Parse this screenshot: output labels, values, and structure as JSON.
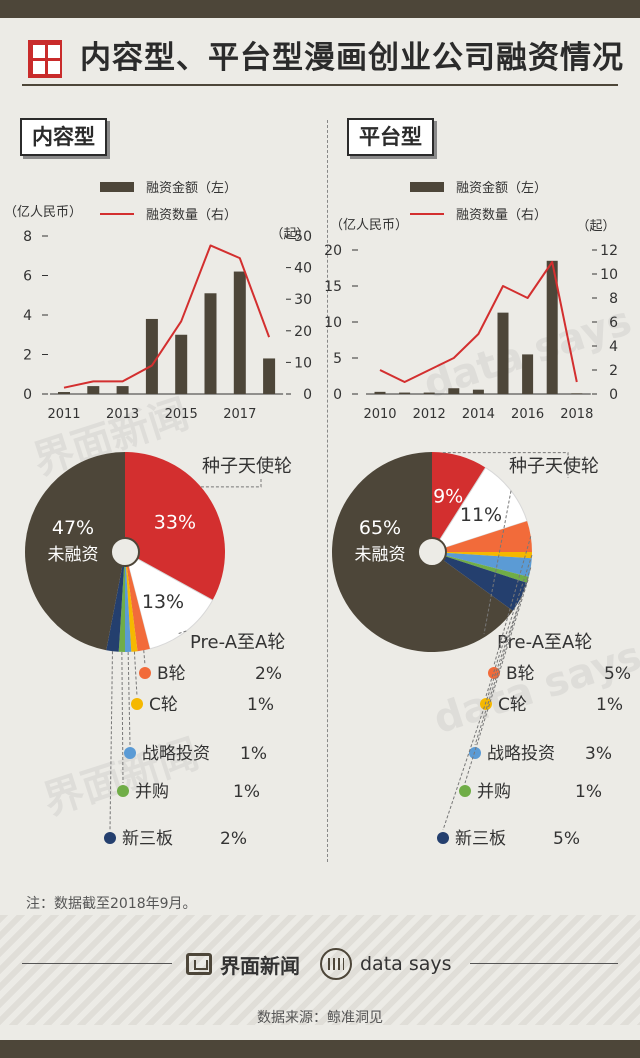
{
  "header": {
    "title": "内容型、平台型漫画创业公司融资情况"
  },
  "watermarks": [
    "界面新闻",
    "data says",
    "界面新闻",
    "data says"
  ],
  "legend": {
    "amount_label": "融资金额（左）",
    "count_label": "融资数量（右）"
  },
  "colors": {
    "bar": "#4d4639",
    "line": "#d32f2f",
    "seed": "#d32f2f",
    "unfunded": "#4d4639",
    "prea": "#ffffff",
    "b": "#f26b3a",
    "c": "#f5b800",
    "strategic": "#5b9bd5",
    "merger": "#70ad47",
    "neeq": "#243f6e"
  },
  "chart_data": [
    {
      "type": "bar",
      "section_label": "内容型",
      "y_left_label": "（亿人民币）",
      "y_right_label": "（起）",
      "y_left_ticks": [
        "8",
        "6",
        "4",
        "2",
        "0"
      ],
      "y_right_ticks": [
        "50",
        "40",
        "30",
        "20",
        "10",
        "0"
      ],
      "x_ticks": [
        "2011",
        "2013",
        "2015",
        "2017"
      ],
      "ylim_left": [
        0,
        8
      ],
      "ylim_right": [
        0,
        50
      ],
      "categories": [
        "2011",
        "2012",
        "2013",
        "2014",
        "2015",
        "2016",
        "2017",
        "2018"
      ],
      "series": [
        {
          "name": "融资金额（左）",
          "values": [
            0.1,
            0.4,
            0.4,
            3.8,
            3.0,
            5.1,
            6.2,
            1.8
          ]
        },
        {
          "name": "融资数量（右）",
          "values": [
            2,
            4,
            4,
            9,
            23,
            47,
            43,
            18
          ]
        }
      ]
    },
    {
      "type": "bar",
      "section_label": "平台型",
      "y_left_label": "（亿人民币）",
      "y_right_label": "（起）",
      "y_left_ticks": [
        "20",
        "15",
        "10",
        "5",
        "0"
      ],
      "y_right_ticks": [
        "12",
        "10",
        "8",
        "6",
        "4",
        "2",
        "0"
      ],
      "x_ticks": [
        "2010",
        "2012",
        "2014",
        "2016",
        "2018"
      ],
      "ylim_left": [
        0,
        20
      ],
      "ylim_right": [
        0,
        12
      ],
      "categories": [
        "2010",
        "2011",
        "2012",
        "2013",
        "2014",
        "2015",
        "2016",
        "2017",
        "2018"
      ],
      "series": [
        {
          "name": "融资金额（左）",
          "values": [
            0.3,
            0.2,
            0.2,
            0.8,
            0.6,
            11.3,
            5.5,
            18.5,
            0.1
          ]
        },
        {
          "name": "融资数量（右）",
          "values": [
            2,
            1,
            2,
            3,
            5,
            9,
            8,
            11,
            1
          ]
        }
      ]
    },
    {
      "type": "pie",
      "labels": [
        "未融资",
        "种子天使轮",
        "Pre-A至A轮",
        "B轮",
        "C轮",
        "战略投资",
        "并购",
        "新三板"
      ],
      "values": [
        47,
        33,
        13,
        2,
        1,
        1,
        1,
        2
      ],
      "value_labels": [
        "47%",
        "33%",
        "13%",
        "2%",
        "1%",
        "1%",
        "1%",
        "2%"
      ]
    },
    {
      "type": "pie",
      "labels": [
        "未融资",
        "种子天使轮",
        "Pre-A至A轮",
        "B轮",
        "C轮",
        "战略投资",
        "并购",
        "新三板"
      ],
      "values": [
        65,
        9,
        11,
        5,
        1,
        3,
        1,
        5
      ],
      "value_labels": [
        "65%",
        "9%",
        "11%",
        "5%",
        "1%",
        "3%",
        "1%",
        "5%"
      ]
    }
  ],
  "note": "注：数据截至2018年9月。",
  "footer": {
    "brand": "界面新闻",
    "brand2": "data says",
    "source": "数据来源：鲸准洞见"
  }
}
